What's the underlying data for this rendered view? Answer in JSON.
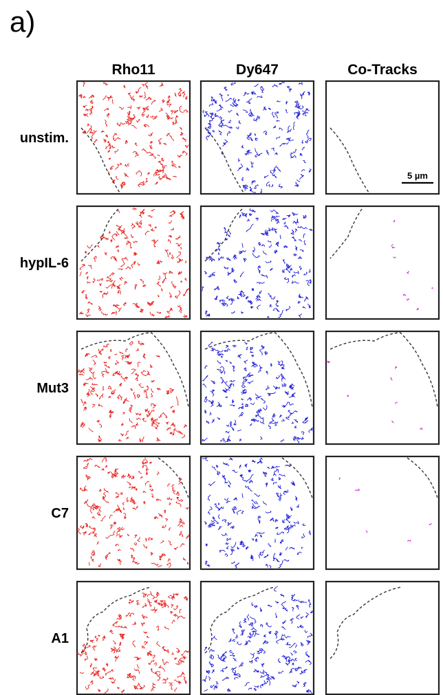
{
  "figure_label": "a)",
  "columns": [
    {
      "key": "rho11",
      "label": "Rho11",
      "color": "#e8201c"
    },
    {
      "key": "dy647",
      "label": "Dy647",
      "color": "#1f1fd6"
    },
    {
      "key": "cotracks",
      "label": "Co-Tracks",
      "color": "#d020d0"
    }
  ],
  "rows": [
    {
      "label": "unstim."
    },
    {
      "label": "hypIL-6"
    },
    {
      "label": "Mut3"
    },
    {
      "label": "C7"
    },
    {
      "label": "A1"
    }
  ],
  "scale_bar": {
    "label": "5 µm"
  },
  "colors": {
    "border": "#222222",
    "outline": "#333333"
  }
}
